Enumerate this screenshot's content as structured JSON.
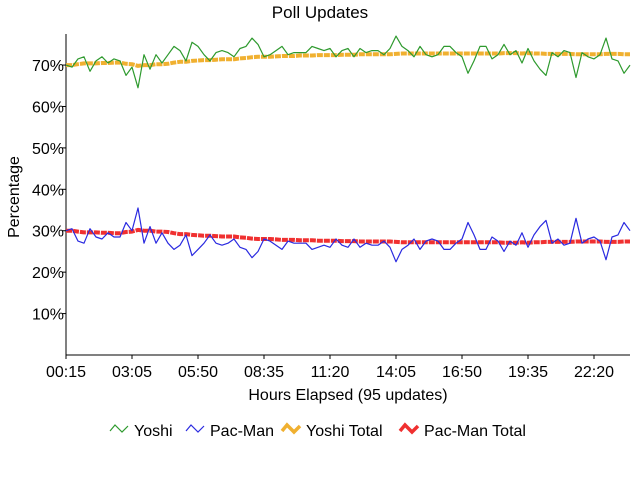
{
  "chart_data": {
    "type": "line",
    "title": "Poll Updates",
    "xlabel": "Hours Elapsed (95 updates)",
    "ylabel": "Percentage",
    "ylim": [
      0,
      77.5
    ],
    "y_ticks": [
      10,
      20,
      30,
      40,
      50,
      60,
      70
    ],
    "y_tick_labels": [
      "10%",
      "20%",
      "30%",
      "40%",
      "50%",
      "60%",
      "70%"
    ],
    "x_ticks": [
      "00:15",
      "03:05",
      "05:50",
      "08:35",
      "11:20",
      "14:05",
      "16:50",
      "19:35",
      "22:20"
    ],
    "x_range_updates": [
      0,
      94
    ],
    "x_tick_update_index": [
      0,
      11,
      22,
      33,
      44,
      55,
      66,
      77,
      88
    ],
    "legend_position": "bottom",
    "series": [
      {
        "name": "Yoshi",
        "color": "#2e9a2e",
        "style": "thin",
        "values": [
          70.0,
          69.5,
          71.5,
          72.0,
          68.5,
          71.0,
          72.0,
          70.5,
          71.5,
          71.0,
          67.5,
          69.5,
          64.5,
          72.5,
          69.0,
          72.5,
          70.5,
          72.5,
          74.5,
          73.5,
          71.0,
          75.5,
          74.5,
          72.5,
          71.0,
          73.0,
          73.5,
          73.0,
          72.0,
          74.0,
          74.5,
          76.5,
          75.0,
          72.0,
          72.5,
          73.5,
          74.5,
          72.5,
          73.0,
          73.0,
          73.0,
          74.5,
          74.0,
          73.5,
          74.0,
          72.0,
          73.5,
          74.0,
          72.0,
          74.0,
          73.0,
          73.5,
          73.5,
          72.5,
          74.0,
          77.0,
          74.5,
          73.5,
          72.0,
          74.5,
          72.5,
          72.0,
          72.5,
          74.5,
          74.5,
          73.0,
          72.0,
          68.0,
          71.0,
          74.5,
          74.5,
          71.5,
          72.5,
          75.0,
          72.5,
          73.5,
          70.5,
          74.0,
          71.0,
          69.0,
          67.5,
          73.0,
          72.0,
          73.5,
          73.0,
          67.0,
          73.0,
          72.0,
          71.5,
          72.5,
          76.5,
          71.5,
          71.0,
          68.0,
          70.0
        ]
      },
      {
        "name": "Pac-Man",
        "color": "#2a2ae0",
        "style": "thin",
        "values": [
          30.0,
          30.5,
          27.5,
          27.0,
          30.5,
          28.5,
          28.0,
          29.5,
          28.5,
          28.5,
          32.0,
          30.0,
          35.5,
          27.0,
          31.0,
          27.0,
          29.5,
          27.0,
          25.5,
          26.5,
          29.0,
          24.0,
          25.5,
          27.0,
          29.0,
          27.0,
          26.5,
          27.0,
          28.0,
          26.0,
          25.5,
          23.5,
          25.0,
          28.0,
          27.5,
          26.5,
          25.5,
          27.5,
          27.0,
          27.0,
          27.0,
          25.5,
          26.0,
          26.5,
          26.0,
          28.0,
          26.5,
          26.0,
          28.0,
          26.0,
          27.0,
          26.5,
          26.5,
          27.5,
          26.0,
          22.5,
          25.5,
          26.5,
          28.0,
          25.5,
          27.5,
          28.0,
          27.5,
          25.5,
          25.5,
          27.0,
          28.0,
          32.0,
          29.0,
          25.5,
          25.5,
          28.5,
          27.5,
          25.0,
          27.5,
          26.5,
          29.5,
          26.0,
          29.0,
          31.0,
          32.5,
          27.0,
          28.0,
          26.5,
          27.0,
          33.0,
          27.0,
          28.0,
          28.5,
          27.5,
          23.0,
          28.5,
          29.0,
          32.0,
          30.0
        ]
      },
      {
        "name": "Yoshi Total",
        "color": "#f0b030",
        "style": "thick",
        "values": [
          70.0,
          70.0,
          70.2,
          70.4,
          70.4,
          70.4,
          70.5,
          70.5,
          70.6,
          70.6,
          70.3,
          70.2,
          69.8,
          70.0,
          70.0,
          70.2,
          70.2,
          70.3,
          70.6,
          70.8,
          70.8,
          71.0,
          71.1,
          71.2,
          71.2,
          71.3,
          71.4,
          71.4,
          71.4,
          71.6,
          71.7,
          71.9,
          72.0,
          72.0,
          72.0,
          72.1,
          72.2,
          72.2,
          72.2,
          72.3,
          72.3,
          72.3,
          72.4,
          72.4,
          72.4,
          72.4,
          72.5,
          72.5,
          72.5,
          72.6,
          72.6,
          72.6,
          72.6,
          72.6,
          72.6,
          72.7,
          72.8,
          72.8,
          72.8,
          72.8,
          72.8,
          72.8,
          72.8,
          72.8,
          72.8,
          72.8,
          72.8,
          72.8,
          72.8,
          72.8,
          72.8,
          72.8,
          72.8,
          72.9,
          72.9,
          72.9,
          72.8,
          72.9,
          72.8,
          72.8,
          72.7,
          72.7,
          72.7,
          72.7,
          72.7,
          72.6,
          72.6,
          72.6,
          72.6,
          72.6,
          72.7,
          72.7,
          72.7,
          72.6,
          72.6
        ]
      },
      {
        "name": "Pac-Man Total",
        "color": "#f03030",
        "style": "thick",
        "values": [
          30.0,
          30.0,
          29.8,
          29.6,
          29.6,
          29.6,
          29.5,
          29.5,
          29.4,
          29.4,
          29.7,
          29.8,
          30.2,
          30.0,
          30.0,
          29.8,
          29.8,
          29.7,
          29.4,
          29.2,
          29.2,
          29.0,
          28.9,
          28.8,
          28.8,
          28.7,
          28.6,
          28.6,
          28.6,
          28.4,
          28.3,
          28.1,
          28.0,
          28.0,
          28.0,
          27.9,
          27.8,
          27.8,
          27.8,
          27.7,
          27.7,
          27.7,
          27.6,
          27.6,
          27.6,
          27.6,
          27.5,
          27.5,
          27.5,
          27.4,
          27.4,
          27.4,
          27.4,
          27.4,
          27.4,
          27.3,
          27.2,
          27.2,
          27.2,
          27.2,
          27.2,
          27.2,
          27.2,
          27.2,
          27.2,
          27.2,
          27.2,
          27.2,
          27.2,
          27.2,
          27.2,
          27.2,
          27.2,
          27.1,
          27.1,
          27.1,
          27.2,
          27.1,
          27.2,
          27.2,
          27.3,
          27.3,
          27.3,
          27.3,
          27.3,
          27.4,
          27.4,
          27.4,
          27.4,
          27.4,
          27.3,
          27.3,
          27.3,
          27.4,
          27.4
        ]
      }
    ]
  }
}
